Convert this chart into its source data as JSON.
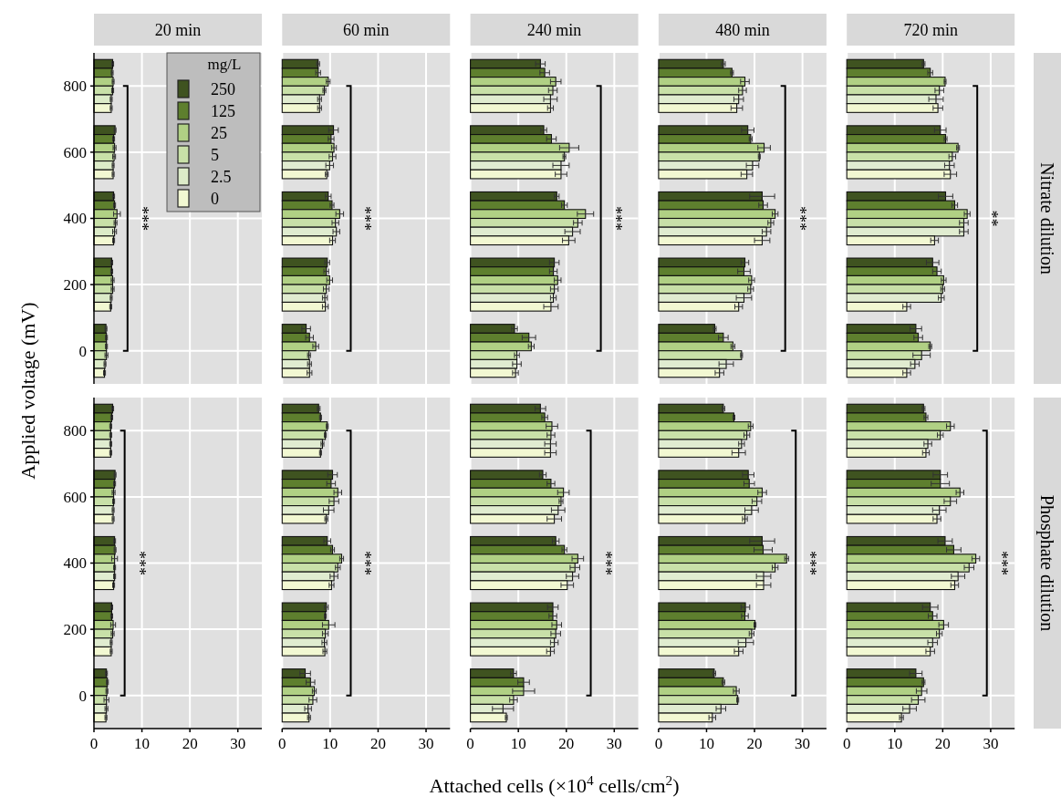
{
  "chart_data": [
    {
      "type": "bar",
      "orientation": "horizontal",
      "title": "20 min",
      "ylabel": "Applied voltage (mV)",
      "categories": [
        "800",
        "600",
        "400",
        "200",
        "0"
      ],
      "xlim": [
        0,
        35
      ],
      "xticks": [
        0,
        10,
        20,
        30
      ],
      "grid": true,
      "tick_labels": "y",
      "legend": "top right",
      "legend_title": "mg/L",
      "annotations": [
        "***"
      ],
      "series": [
        {
          "name": "250",
          "color": "#3f5320",
          "values": [
            3.9,
            4.4,
            4.1,
            3.7,
            2.5
          ],
          "errors": [
            0.2,
            0.2,
            0.2,
            0.2,
            0.2
          ]
        },
        {
          "name": "125",
          "color": "#5e7f2e",
          "values": [
            3.8,
            4.1,
            4.3,
            3.7,
            2.6
          ],
          "errors": [
            0.2,
            0.2,
            0.2,
            0.2,
            0.2
          ]
        },
        {
          "name": "25",
          "color": "#b0d084",
          "values": [
            4.0,
            4.3,
            4.8,
            3.9,
            2.6
          ],
          "errors": [
            0.2,
            0.3,
            0.7,
            0.3,
            0.2
          ]
        },
        {
          "name": "5",
          "color": "#c8e0a8",
          "values": [
            3.9,
            4.2,
            4.5,
            3.9,
            2.6
          ],
          "errors": [
            0.2,
            0.3,
            0.3,
            0.3,
            0.3
          ]
        },
        {
          "name": "2.5",
          "color": "#dcebc8",
          "values": [
            3.6,
            4.0,
            4.3,
            3.6,
            2.3
          ],
          "errors": [
            0.2,
            0.2,
            0.4,
            0.2,
            0.2
          ]
        },
        {
          "name": "0",
          "color": "#f2f8d2",
          "values": [
            3.6,
            4.0,
            4.1,
            3.5,
            2.2
          ],
          "errors": [
            0.2,
            0.2,
            0.2,
            0.2,
            0.2
          ]
        }
      ]
    },
    {
      "type": "bar",
      "orientation": "horizontal",
      "title": "60 min",
      "categories": [
        "800",
        "600",
        "400",
        "200",
        "0"
      ],
      "xlim": [
        0,
        35
      ],
      "xticks": [
        0,
        10,
        20,
        30
      ],
      "grid": true,
      "tick_labels": false,
      "annotations": [
        "***"
      ],
      "series": [
        {
          "color": "#3f5320",
          "values": [
            7.5,
            10.7,
            9.6,
            9.4,
            5.0
          ],
          "errors": [
            0.3,
            1.0,
            0.6,
            0.5,
            0.9
          ]
        },
        {
          "color": "#5e7f2e",
          "values": [
            7.5,
            10.2,
            10.4,
            9.2,
            5.7
          ],
          "errors": [
            0.5,
            0.6,
            0.4,
            0.5,
            0.8
          ]
        },
        {
          "color": "#b0d084",
          "values": [
            9.6,
            10.8,
            12.0,
            9.9,
            7.0
          ],
          "errors": [
            0.4,
            0.5,
            0.8,
            0.6,
            0.6
          ]
        },
        {
          "color": "#c8e0a8",
          "values": [
            8.8,
            10.5,
            11.1,
            9.2,
            5.6
          ],
          "errors": [
            0.3,
            0.7,
            0.7,
            0.6,
            0.3
          ]
        },
        {
          "color": "#e0ecd0",
          "values": [
            7.8,
            9.9,
            11.3,
            8.9,
            5.7
          ],
          "errors": [
            0.4,
            0.8,
            0.7,
            0.5,
            0.4
          ]
        },
        {
          "color": "#f2f8d2",
          "values": [
            7.8,
            9.3,
            10.5,
            9.0,
            5.7
          ],
          "errors": [
            0.4,
            0.3,
            0.6,
            0.6,
            0.5
          ]
        }
      ]
    },
    {
      "type": "bar",
      "orientation": "horizontal",
      "title": "240 min",
      "categories": [
        "800",
        "600",
        "400",
        "200",
        "0"
      ],
      "xlim": [
        0,
        35
      ],
      "xticks": [
        0,
        10,
        20,
        30
      ],
      "grid": true,
      "tick_labels": false,
      "annotations": [
        "***"
      ],
      "series": [
        {
          "color": "#3f5320",
          "values": [
            14.6,
            15.3,
            18.0,
            17.5,
            9.2
          ],
          "errors": [
            1.0,
            0.6,
            0.5,
            1.0,
            0.6
          ]
        },
        {
          "color": "#5e7f2e",
          "values": [
            15.5,
            16.9,
            19.6,
            17.3,
            12.2
          ],
          "errors": [
            1.0,
            1.0,
            0.6,
            0.8,
            1.4
          ]
        },
        {
          "color": "#b0d084",
          "values": [
            17.8,
            20.6,
            24.0,
            18.2,
            12.7
          ],
          "errors": [
            1.1,
            2.0,
            1.7,
            0.7,
            0.6
          ]
        },
        {
          "color": "#c8e0a8",
          "values": [
            17.2,
            19.6,
            22.4,
            17.5,
            9.7
          ],
          "errors": [
            0.9,
            0.3,
            0.9,
            0.8,
            0.5
          ]
        },
        {
          "color": "#e0ecd0",
          "values": [
            16.7,
            18.9,
            21.3,
            17.3,
            9.7
          ],
          "errors": [
            1.4,
            1.7,
            1.6,
            0.6,
            0.9
          ]
        },
        {
          "color": "#f2f8d2",
          "values": [
            16.7,
            18.9,
            20.5,
            16.8,
            9.4
          ],
          "errors": [
            0.6,
            1.2,
            1.3,
            1.5,
            0.6
          ]
        }
      ]
    },
    {
      "type": "bar",
      "orientation": "horizontal",
      "title": "480 min",
      "categories": [
        "800",
        "600",
        "400",
        "200",
        "0"
      ],
      "xlim": [
        0,
        35
      ],
      "xticks": [
        0,
        10,
        20,
        30
      ],
      "grid": true,
      "tick_labels": false,
      "annotations": [
        "***"
      ],
      "series": [
        {
          "color": "#3f5320",
          "values": [
            13.5,
            18.6,
            21.6,
            18.0,
            11.7
          ],
          "errors": [
            0.4,
            1.3,
            2.6,
            0.8,
            0.3
          ]
        },
        {
          "color": "#5e7f2e",
          "values": [
            15.3,
            19.2,
            21.8,
            17.8,
            13.5
          ],
          "errors": [
            0.3,
            0.3,
            0.9,
            1.3,
            1.0
          ]
        },
        {
          "color": "#b0d084",
          "values": [
            18.0,
            22.0,
            24.3,
            19.4,
            15.5
          ],
          "errors": [
            0.9,
            1.3,
            0.6,
            0.6,
            0.4
          ]
        },
        {
          "color": "#c8e0a8",
          "values": [
            17.5,
            21.0,
            23.4,
            19.2,
            17.3
          ],
          "errors": [
            0.8,
            0.2,
            0.6,
            0.6,
            0.2
          ]
        },
        {
          "color": "#e0ecd0",
          "values": [
            16.7,
            19.6,
            22.5,
            17.8,
            14.1
          ],
          "errors": [
            1.0,
            1.3,
            0.9,
            1.6,
            1.5
          ]
        },
        {
          "color": "#f2f8d2",
          "values": [
            16.3,
            18.4,
            21.6,
            16.7,
            12.7
          ],
          "errors": [
            1.2,
            1.2,
            1.6,
            0.8,
            0.9
          ]
        }
      ]
    },
    {
      "type": "bar",
      "orientation": "horizontal",
      "title": "720 min",
      "y2label": "Nitrate dilution",
      "categories": [
        "800",
        "600",
        "400",
        "200",
        "0"
      ],
      "xlim": [
        0,
        35
      ],
      "xticks": [
        0,
        10,
        20,
        30
      ],
      "grid": true,
      "tick_labels": false,
      "annotations": [
        "**"
      ],
      "series": [
        {
          "color": "#3f5320",
          "values": [
            16.0,
            19.5,
            20.6,
            17.9,
            14.4
          ],
          "errors": [
            0.3,
            1.2,
            1.5,
            1.3,
            1.2
          ]
        },
        {
          "color": "#5e7f2e",
          "values": [
            17.4,
            20.6,
            22.5,
            18.8,
            14.9
          ],
          "errors": [
            0.5,
            0.3,
            0.6,
            0.9,
            0.9
          ]
        },
        {
          "color": "#b0d084",
          "values": [
            20.5,
            23.2,
            25.1,
            20.2,
            17.4
          ],
          "errors": [
            0.2,
            0.3,
            0.6,
            0.5,
            0.3
          ]
        },
        {
          "color": "#c8e0a8",
          "values": [
            19.3,
            22.0,
            24.4,
            20.0,
            15.6
          ],
          "errors": [
            0.9,
            0.7,
            0.9,
            0.4,
            1.8
          ]
        },
        {
          "color": "#e0ecd0",
          "values": [
            18.6,
            21.4,
            24.4,
            19.7,
            14.2
          ],
          "errors": [
            1.5,
            1.0,
            0.9,
            0.6,
            0.9
          ]
        },
        {
          "color": "#f2f8d2",
          "values": [
            19.0,
            21.6,
            18.3,
            12.5,
            12.5
          ],
          "errors": [
            1.0,
            1.3,
            0.8,
            0.8,
            0.8
          ]
        }
      ]
    },
    {
      "type": "bar",
      "orientation": "horizontal",
      "y2label": "Phosphate dilution",
      "categories": [
        "800",
        "600",
        "400",
        "200",
        "0"
      ],
      "xlim": [
        0,
        35
      ],
      "xticks": [
        0,
        10,
        20,
        30
      ],
      "grid": true,
      "annotations": [
        "***"
      ],
      "series": [
        {
          "color": "#3f5320",
          "values": [
            3.9,
            4.4,
            4.3,
            3.7,
            2.6
          ],
          "errors": [
            0.2,
            0.2,
            0.2,
            0.2,
            0.2
          ]
        },
        {
          "color": "#5e7f2e",
          "values": [
            3.7,
            4.3,
            4.4,
            3.7,
            2.8
          ],
          "errors": [
            0.2,
            0.2,
            0.2,
            0.2,
            0.2
          ]
        },
        {
          "color": "#b0d084",
          "values": [
            3.5,
            4.1,
            4.3,
            4.0,
            2.7
          ],
          "errors": [
            0.2,
            0.3,
            0.6,
            0.5,
            0.2
          ]
        },
        {
          "color": "#c8e0a8",
          "values": [
            3.5,
            4.1,
            4.3,
            3.9,
            2.6
          ],
          "errors": [
            0.2,
            0.2,
            0.2,
            0.3,
            0.5
          ]
        },
        {
          "color": "#e0ecd0",
          "values": [
            3.5,
            4.0,
            4.3,
            3.6,
            2.6
          ],
          "errors": [
            0.2,
            0.2,
            0.2,
            0.2,
            0.3
          ]
        },
        {
          "color": "#f2f8d2",
          "values": [
            3.5,
            4.0,
            4.1,
            3.6,
            2.5
          ],
          "errors": [
            0.2,
            0.2,
            0.2,
            0.2,
            0.2
          ]
        }
      ]
    },
    {
      "type": "bar",
      "orientation": "horizontal",
      "categories": [
        "800",
        "600",
        "400",
        "200",
        "0"
      ],
      "xlim": [
        0,
        35
      ],
      "xticks": [
        0,
        10,
        20,
        30
      ],
      "grid": true,
      "tick_labels": "x",
      "annotations": [
        "***"
      ],
      "series": [
        {
          "color": "#3f5320",
          "values": [
            7.6,
            10.5,
            9.4,
            9.2,
            4.8
          ],
          "errors": [
            0.3,
            1.0,
            0.7,
            0.4,
            1.1
          ]
        },
        {
          "color": "#5e7f2e",
          "values": [
            8.0,
            10.2,
            10.5,
            9.0,
            5.9
          ],
          "errors": [
            0.2,
            0.9,
            0.4,
            0.2,
            0.9
          ]
        },
        {
          "color": "#b0d084",
          "values": [
            9.4,
            11.6,
            12.4,
            9.7,
            6.7
          ],
          "errors": [
            0.2,
            0.8,
            0.4,
            1.3,
            0.4
          ]
        },
        {
          "color": "#c8e0a8",
          "values": [
            9.0,
            10.8,
            11.6,
            9.0,
            6.4
          ],
          "errors": [
            0.2,
            1.0,
            0.5,
            0.6,
            0.8
          ]
        },
        {
          "color": "#e0ecd0",
          "values": [
            8.4,
            9.7,
            10.8,
            8.8,
            5.4
          ],
          "errors": [
            0.3,
            1.1,
            0.8,
            0.5,
            0.7
          ]
        },
        {
          "color": "#f2f8d2",
          "values": [
            8.0,
            9.2,
            10.3,
            8.9,
            5.6
          ],
          "errors": [
            0.2,
            0.3,
            0.5,
            0.4,
            0.3
          ]
        }
      ]
    },
    {
      "type": "bar",
      "orientation": "horizontal",
      "xlabel": "Attached cells (×10$^{4}$ cells/cm$^{2}$)",
      "categories": [
        "800",
        "600",
        "400",
        "200",
        "0"
      ],
      "xlim": [
        0,
        35
      ],
      "xticks": [
        0,
        10,
        20,
        30
      ],
      "grid": true,
      "tick_labels": "x",
      "annotations": [
        "***"
      ],
      "series": [
        {
          "color": "#3f5320",
          "values": [
            14.6,
            15.1,
            17.8,
            17.2,
            9.0
          ],
          "errors": [
            1.1,
            0.7,
            0.7,
            1.1,
            0.6
          ]
        },
        {
          "color": "#5e7f2e",
          "values": [
            15.5,
            16.8,
            19.6,
            17.2,
            11.1
          ],
          "errors": [
            0.6,
            0.8,
            0.5,
            0.8,
            1.2
          ]
        },
        {
          "color": "#b0d084",
          "values": [
            17.0,
            19.4,
            22.4,
            18.0,
            11.1
          ],
          "errors": [
            1.2,
            1.2,
            1.2,
            1.0,
            2.3
          ]
        },
        {
          "color": "#c8e0a8",
          "values": [
            16.8,
            18.9,
            21.8,
            17.8,
            9.0
          ],
          "errors": [
            0.8,
            0.4,
            1.0,
            1.0,
            0.8
          ]
        },
        {
          "color": "#e0ecd0",
          "values": [
            16.7,
            18.3,
            21.3,
            17.5,
            6.8
          ],
          "errors": [
            1.2,
            1.4,
            1.3,
            0.8,
            2.2
          ]
        },
        {
          "color": "#f2f8d2",
          "values": [
            16.7,
            17.5,
            20.2,
            16.7,
            7.5
          ],
          "errors": [
            1.2,
            1.5,
            1.3,
            0.8,
            0.2
          ]
        }
      ]
    },
    {
      "type": "bar",
      "orientation": "horizontal",
      "categories": [
        "800",
        "600",
        "400",
        "200",
        "0"
      ],
      "xlim": [
        0,
        35
      ],
      "xticks": [
        0,
        10,
        20,
        30
      ],
      "grid": true,
      "tick_labels": "x",
      "annotations": [
        "***"
      ],
      "series": [
        {
          "color": "#3f5320",
          "values": [
            13.5,
            18.7,
            21.6,
            18.1,
            11.6
          ],
          "errors": [
            0.3,
            1.2,
            2.6,
            0.9,
            0.3
          ]
        },
        {
          "color": "#5e7f2e",
          "values": [
            15.7,
            18.9,
            21.8,
            18.0,
            13.5
          ],
          "errors": [
            0.2,
            1.1,
            1.9,
            0.7,
            0.3
          ]
        },
        {
          "color": "#b0d084",
          "values": [
            19.2,
            21.6,
            26.7,
            20.1,
            16.2
          ],
          "errors": [
            0.5,
            0.9,
            0.4,
            0.2,
            0.6
          ]
        },
        {
          "color": "#c8e0a8",
          "values": [
            18.4,
            20.5,
            24.3,
            19.4,
            16.5
          ],
          "errors": [
            0.6,
            1.0,
            0.6,
            0.5,
            0.2
          ]
        },
        {
          "color": "#e0ecd0",
          "values": [
            17.3,
            19.4,
            21.9,
            18.2,
            13.0
          ],
          "errors": [
            0.6,
            1.4,
            1.5,
            1.6,
            1.0
          ]
        },
        {
          "color": "#f2f8d2",
          "values": [
            16.7,
            18.0,
            21.9,
            16.7,
            11.2
          ],
          "errors": [
            1.4,
            0.5,
            1.5,
            0.9,
            0.7
          ]
        }
      ]
    },
    {
      "type": "bar",
      "orientation": "horizontal",
      "categories": [
        "800",
        "600",
        "400",
        "200",
        "0"
      ],
      "xlim": [
        0,
        35
      ],
      "xticks": [
        0,
        10,
        20,
        30
      ],
      "grid": true,
      "tick_labels": "x",
      "annotations": [
        "***"
      ],
      "series": [
        {
          "color": "#3f5320",
          "values": [
            16.0,
            19.5,
            20.5,
            17.4,
            14.4
          ],
          "errors": [
            0.3,
            1.5,
            1.5,
            1.6,
            1.3
          ]
        },
        {
          "color": "#5e7f2e",
          "values": [
            16.5,
            19.5,
            22.3,
            17.9,
            16.0
          ],
          "errors": [
            0.4,
            1.9,
            1.5,
            0.9,
            0.3
          ]
        },
        {
          "color": "#b0d084",
          "values": [
            21.6,
            23.6,
            26.9,
            20.2,
            15.6
          ],
          "errors": [
            0.8,
            0.8,
            0.8,
            1.0,
            1.1
          ]
        },
        {
          "color": "#c8e0a8",
          "values": [
            19.5,
            21.6,
            25.5,
            19.3,
            14.9
          ],
          "errors": [
            0.6,
            1.3,
            1.0,
            0.6,
            1.4
          ]
        },
        {
          "color": "#e0ecd0",
          "values": [
            16.9,
            19.3,
            23.2,
            17.9,
            13.1
          ],
          "errors": [
            0.8,
            1.4,
            1.4,
            1.0,
            1.4
          ]
        },
        {
          "color": "#f2f8d2",
          "values": [
            16.5,
            18.8,
            22.5,
            17.4,
            11.4
          ],
          "errors": [
            0.7,
            0.8,
            0.8,
            0.9,
            0.4
          ]
        }
      ]
    }
  ]
}
